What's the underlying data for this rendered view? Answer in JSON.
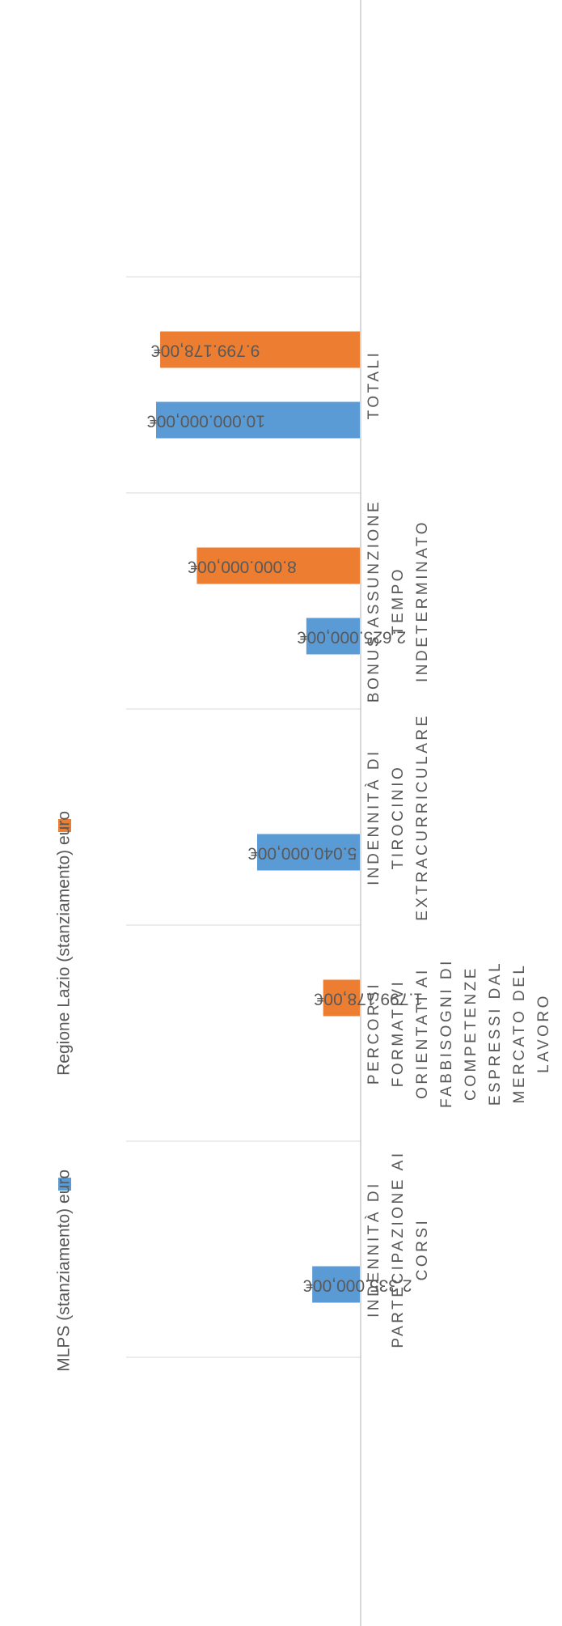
{
  "chart_data": {
    "type": "bar",
    "orientation": "horizontal",
    "rotated": "90deg-clockwise",
    "categories": [
      "INDENNITÀ DI PARTECIPAZIONE AI CORSI",
      "PERCORSI FORMATIVI ORIENTATI AI FABBISOGNI DI COMPETENZE ESPRESSI DAL MERCATO DEL LAVORO",
      "INDENNITÀ DI TIROCINIO EXTRACURRICULARE",
      "BONUS ASSUNZIONE TEMPO INDETERMINATO",
      "TOTALI"
    ],
    "category_lines": [
      [
        "INDENNITÀ DI",
        "PARTECIPAZIONE AI",
        "CORSI"
      ],
      [
        "PERCORSI",
        "FORMATIVI",
        "ORIENTATI AI",
        "FABBISOGNI DI",
        "COMPETENZE",
        "ESPRESSI DAL",
        "MERCATO DEL",
        "LAVORO"
      ],
      [
        "INDENNITÀ DI",
        "TIROCINIO",
        "EXTRACURRICULARE"
      ],
      [
        "BONUS ASSUNZIONE",
        "TEMPO",
        "INDETERMINATO"
      ],
      [
        "TOTALI"
      ]
    ],
    "series": [
      {
        "name": "MLPS (stanziamento) euro",
        "color": "#5b9bd5",
        "values": [
          2335000,
          null,
          5040000,
          2625000,
          10000000
        ],
        "labels": [
          "2.335.000,00€",
          "",
          "5.040.000,00€",
          "2.625.000,00€",
          "10.000.000,00€"
        ]
      },
      {
        "name": "Regione Lazio (stanziamento) euro",
        "color": "#ed7d31",
        "values": [
          null,
          1799178,
          null,
          8000000,
          9799178
        ],
        "labels": [
          "",
          "1.799.178,00€",
          "",
          "8.000.000,00€",
          "9.799.178,00€"
        ]
      }
    ],
    "xlim": [
      0,
      12000000
    ],
    "gridlines": "major",
    "legend_position": "top"
  }
}
